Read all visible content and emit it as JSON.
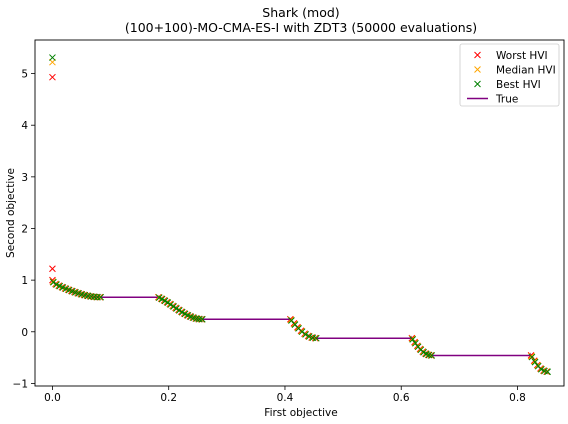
{
  "chart_data": {
    "type": "scatter",
    "title": "Shark (mod)",
    "subtitle": "(100+100)-MO-CMA-ES-I with ZDT3 (50000 evaluations)",
    "xlabel": "First objective",
    "ylabel": "Second objective",
    "xlim": [
      -0.03,
      0.88
    ],
    "ylim": [
      -1.05,
      5.65
    ],
    "xticks": [
      0.0,
      0.2,
      0.4,
      0.6,
      0.8
    ],
    "xtick_labels": [
      "0.0",
      "0.2",
      "0.4",
      "0.6",
      "0.8"
    ],
    "yticks": [
      -1,
      0,
      1,
      2,
      3,
      4,
      5
    ],
    "ytick_labels": [
      "−1",
      "0",
      "1",
      "2",
      "3",
      "4",
      "5"
    ],
    "legend_position": "top-right",
    "legend": [
      {
        "label": "Worst HVI",
        "color": "#ff0000",
        "marker": "x"
      },
      {
        "label": "Median HVI",
        "color": "#ffa500",
        "marker": "x"
      },
      {
        "label": "Best HVI",
        "color": "#008000",
        "marker": "x"
      },
      {
        "label": "True",
        "color": "#800080",
        "marker": "line"
      }
    ],
    "true_front_segments": [
      [
        0.0,
        0.083
      ],
      [
        0.1822,
        0.2578
      ],
      [
        0.4093,
        0.4539
      ],
      [
        0.6183,
        0.6525
      ],
      [
        0.8233,
        0.8518
      ]
    ],
    "outliers": {
      "worst": [
        [
          0.0,
          4.93
        ],
        [
          0.0,
          1.22
        ]
      ],
      "median": [
        [
          0.0,
          5.22
        ]
      ],
      "best": [
        [
          0.0,
          5.31
        ]
      ]
    },
    "points_per_segment": [
      16,
      16,
      8,
      8,
      6
    ]
  }
}
